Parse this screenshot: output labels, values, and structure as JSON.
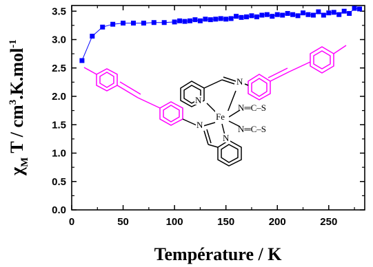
{
  "chart_data": {
    "type": "scatter",
    "xlabel": "Température / K",
    "ylabel": "χ",
    "ylabel_sub": "M",
    "ylabel_rest": " T / cm",
    "ylabel_sup3": "3",
    "ylabel_rest2": ".K.mol",
    "ylabel_sup_exp": "-1",
    "xlim": [
      0,
      285
    ],
    "ylim": [
      0,
      3.6
    ],
    "xticks": [
      "0",
      "50",
      "100",
      "150",
      "200",
      "250"
    ],
    "yticks": [
      "0.0",
      "0.5",
      "1.0",
      "1.5",
      "2.0",
      "2.5",
      "3.0",
      "3.5"
    ],
    "series": [
      {
        "color": "#0000ff",
        "x": [
          10,
          20,
          30,
          40,
          50,
          60,
          70,
          80,
          90,
          100,
          105,
          110,
          115,
          120,
          125,
          130,
          135,
          140,
          145,
          150,
          155,
          160,
          165,
          170,
          175,
          180,
          185,
          190,
          195,
          200,
          205,
          210,
          215,
          220,
          225,
          230,
          235,
          240,
          245,
          250,
          255,
          260,
          265,
          270,
          275,
          280
        ],
        "y": [
          2.63,
          3.06,
          3.22,
          3.27,
          3.29,
          3.29,
          3.29,
          3.3,
          3.3,
          3.31,
          3.33,
          3.32,
          3.33,
          3.35,
          3.33,
          3.36,
          3.35,
          3.36,
          3.37,
          3.36,
          3.37,
          3.41,
          3.39,
          3.4,
          3.42,
          3.4,
          3.43,
          3.44,
          3.41,
          3.44,
          3.43,
          3.46,
          3.44,
          3.42,
          3.47,
          3.44,
          3.43,
          3.49,
          3.43,
          3.47,
          3.48,
          3.44,
          3.5,
          3.46,
          3.55,
          3.54
        ]
      }
    ]
  },
  "molecule": {
    "atom_N1": "N",
    "atom_N2": "N",
    "atom_N3": "N",
    "atom_N4": "N",
    "atom_Fe": "Fe",
    "ncs1": "N═C–S",
    "ncs2": "N═C–S",
    "color_aryl": "#ff00ff",
    "color_core": "#000000"
  }
}
